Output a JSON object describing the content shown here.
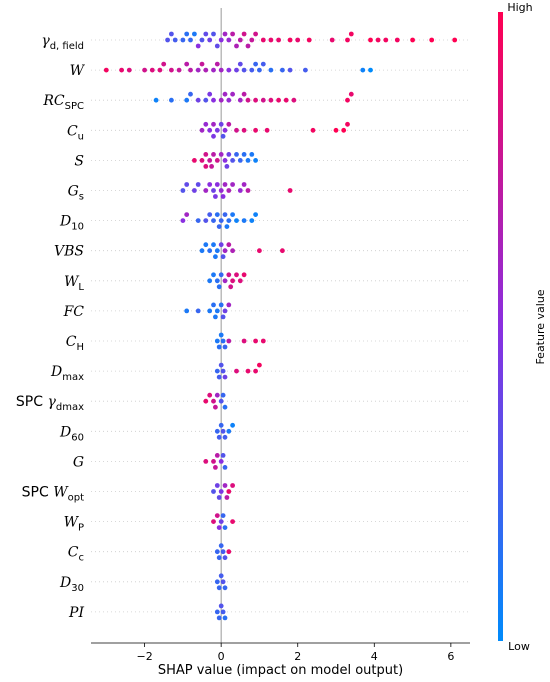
{
  "chart_data": {
    "type": "scatter",
    "subtype": "shap-beeswarm-summary",
    "xlabel": "SHAP value (impact on model output)",
    "xlim": [
      -3.4,
      6.5
    ],
    "xticks": [
      -2,
      0,
      2,
      4,
      6
    ],
    "xtick_labels": [
      "−2",
      "0",
      "2",
      "4",
      "6"
    ],
    "grid": "dotted horizontal row guides",
    "zero_line": 0,
    "colorbar": {
      "title": "Feature value",
      "high_label": "High",
      "low_label": "Low",
      "high_color": "#ff0052",
      "low_color": "#008bfb",
      "placement": "right"
    },
    "features": [
      {
        "id": "gamma_d_field",
        "base": "γ",
        "sub": "d, field",
        "pre": "",
        "italic_base": true
      },
      {
        "id": "W",
        "base": "W",
        "sub": "",
        "pre": "",
        "italic_base": true
      },
      {
        "id": "RC_SPC",
        "base": "RC",
        "sub": "SPC",
        "pre": "",
        "italic_base": true
      },
      {
        "id": "C_u",
        "base": "C",
        "sub": "u",
        "pre": "",
        "italic_base": true
      },
      {
        "id": "S",
        "base": "S",
        "sub": "",
        "pre": "",
        "italic_base": true
      },
      {
        "id": "G_s",
        "base": "G",
        "sub": "s",
        "pre": "",
        "italic_base": true
      },
      {
        "id": "D_10",
        "base": "D",
        "sub": "10",
        "pre": "",
        "italic_base": true
      },
      {
        "id": "VBS",
        "base": "VBS",
        "sub": "",
        "pre": "",
        "italic_base": true
      },
      {
        "id": "W_L",
        "base": "W",
        "sub": "L",
        "pre": "",
        "italic_base": true
      },
      {
        "id": "FC",
        "base": "FC",
        "sub": "",
        "pre": "",
        "italic_base": true
      },
      {
        "id": "C_H",
        "base": "C",
        "sub": "H",
        "pre": "",
        "italic_base": true
      },
      {
        "id": "D_max",
        "base": "D",
        "sub": "max",
        "pre": "",
        "italic_base": true
      },
      {
        "id": "SPC_gamma_dmax",
        "base": "γ",
        "sub": "dmax",
        "pre": "SPC ",
        "italic_base": true
      },
      {
        "id": "D_60",
        "base": "D",
        "sub": "60",
        "pre": "",
        "italic_base": true
      },
      {
        "id": "G",
        "base": "G",
        "sub": "",
        "pre": "",
        "italic_base": true
      },
      {
        "id": "SPC_W_opt",
        "base": "W",
        "sub": "opt",
        "pre": "SPC ",
        "italic_base": true
      },
      {
        "id": "W_P",
        "base": "W",
        "sub": "P",
        "pre": "",
        "italic_base": true
      },
      {
        "id": "C_c",
        "base": "C",
        "sub": "c",
        "pre": "",
        "italic_base": true
      },
      {
        "id": "D_30",
        "base": "D",
        "sub": "30",
        "pre": "",
        "italic_base": true
      },
      {
        "id": "PI",
        "base": "PI",
        "sub": "",
        "pre": "",
        "italic_base": true
      }
    ],
    "points": [
      [
        [
          -1.4,
          0.3
        ],
        [
          -1.2,
          0.25
        ],
        [
          -1.0,
          0.2
        ],
        [
          -0.9,
          0.15
        ],
        [
          -0.8,
          0.2
        ],
        [
          -0.7,
          0.1
        ],
        [
          -0.5,
          0.3
        ],
        [
          -0.3,
          0.4
        ],
        [
          -0.2,
          0.3
        ],
        [
          0.0,
          0.5
        ],
        [
          0.1,
          0.6
        ],
        [
          0.2,
          0.55
        ],
        [
          0.3,
          0.7
        ],
        [
          0.5,
          0.7
        ],
        [
          0.6,
          0.8
        ],
        [
          0.8,
          0.75
        ],
        [
          0.9,
          0.8
        ],
        [
          1.1,
          0.9
        ],
        [
          1.3,
          0.9
        ],
        [
          1.5,
          0.9
        ],
        [
          1.8,
          0.95
        ],
        [
          2.0,
          0.9
        ],
        [
          2.3,
          0.95
        ],
        [
          2.9,
          0.9
        ],
        [
          3.3,
          0.95
        ],
        [
          3.4,
          0.95
        ],
        [
          3.9,
          1.0
        ],
        [
          4.1,
          0.95
        ],
        [
          4.3,
          0.95
        ],
        [
          4.6,
          0.95
        ],
        [
          5.0,
          1.0
        ],
        [
          5.5,
          1.0
        ],
        [
          6.1,
          1.0
        ],
        [
          -0.6,
          0.5
        ],
        [
          -0.1,
          0.35
        ],
        [
          0.4,
          0.65
        ],
        [
          0.7,
          0.7
        ],
        [
          -1.3,
          0.3
        ],
        [
          -0.4,
          0.35
        ]
      ],
      [
        [
          -3.0,
          0.95
        ],
        [
          -2.6,
          0.9
        ],
        [
          -2.4,
          0.85
        ],
        [
          -2.0,
          0.8
        ],
        [
          -1.6,
          0.85
        ],
        [
          -1.3,
          0.8
        ],
        [
          -1.1,
          0.75
        ],
        [
          -0.8,
          0.7
        ],
        [
          -0.6,
          0.6
        ],
        [
          -0.4,
          0.65
        ],
        [
          -0.2,
          0.6
        ],
        [
          -0.1,
          0.7
        ],
        [
          0.0,
          0.6
        ],
        [
          0.2,
          0.5
        ],
        [
          0.4,
          0.4
        ],
        [
          0.6,
          0.3
        ],
        [
          0.8,
          0.25
        ],
        [
          0.9,
          0.2
        ],
        [
          1.0,
          0.2
        ],
        [
          1.3,
          0.15
        ],
        [
          1.6,
          0.2
        ],
        [
          1.8,
          0.3
        ],
        [
          2.2,
          0.25
        ],
        [
          3.7,
          0.05
        ],
        [
          3.9,
          0.0
        ],
        [
          -1.8,
          0.85
        ],
        [
          -1.5,
          0.8
        ],
        [
          -0.9,
          0.7
        ],
        [
          -0.5,
          0.75
        ],
        [
          0.5,
          0.35
        ],
        [
          1.1,
          0.25
        ]
      ],
      [
        [
          -1.7,
          0.05
        ],
        [
          -1.3,
          0.15
        ],
        [
          -0.9,
          0.1
        ],
        [
          -0.6,
          0.4
        ],
        [
          -0.4,
          0.3
        ],
        [
          -0.2,
          0.5
        ],
        [
          0.0,
          0.6
        ],
        [
          0.1,
          0.6
        ],
        [
          0.2,
          0.55
        ],
        [
          0.3,
          0.6
        ],
        [
          0.5,
          0.6
        ],
        [
          0.7,
          0.8
        ],
        [
          0.9,
          0.85
        ],
        [
          1.1,
          0.8
        ],
        [
          1.3,
          0.85
        ],
        [
          1.5,
          0.9
        ],
        [
          1.7,
          0.9
        ],
        [
          1.9,
          0.85
        ],
        [
          3.3,
          0.95
        ],
        [
          3.4,
          0.9
        ],
        [
          -0.8,
          0.2
        ],
        [
          -0.3,
          0.45
        ],
        [
          0.6,
          0.7
        ]
      ],
      [
        [
          -0.5,
          0.6
        ],
        [
          -0.4,
          0.55
        ],
        [
          -0.3,
          0.5
        ],
        [
          -0.2,
          0.6
        ],
        [
          -0.1,
          0.45
        ],
        [
          0.0,
          0.4
        ],
        [
          0.1,
          0.5
        ],
        [
          0.2,
          0.7
        ],
        [
          0.4,
          0.8
        ],
        [
          0.6,
          0.85
        ],
        [
          0.9,
          0.9
        ],
        [
          1.2,
          0.9
        ],
        [
          2.4,
          0.95
        ],
        [
          3.0,
          1.0
        ],
        [
          3.2,
          1.0
        ],
        [
          3.3,
          0.95
        ],
        [
          -0.2,
          0.45
        ],
        [
          0.05,
          0.3
        ]
      ],
      [
        [
          -0.7,
          0.9
        ],
        [
          -0.5,
          0.85
        ],
        [
          -0.4,
          0.8
        ],
        [
          -0.3,
          0.75
        ],
        [
          -0.2,
          0.7
        ],
        [
          -0.1,
          0.8
        ],
        [
          0.0,
          0.6
        ],
        [
          0.1,
          0.5
        ],
        [
          0.2,
          0.4
        ],
        [
          0.3,
          0.3
        ],
        [
          0.4,
          0.2
        ],
        [
          0.5,
          0.2
        ],
        [
          0.6,
          0.15
        ],
        [
          0.7,
          0.1
        ],
        [
          0.8,
          0.1
        ],
        [
          0.9,
          0.05
        ],
        [
          -0.4,
          0.85
        ],
        [
          -0.25,
          0.75
        ],
        [
          0.15,
          0.4
        ]
      ],
      [
        [
          -1.0,
          0.3
        ],
        [
          -0.9,
          0.35
        ],
        [
          -0.7,
          0.4
        ],
        [
          -0.6,
          0.35
        ],
        [
          -0.4,
          0.6
        ],
        [
          -0.3,
          0.5
        ],
        [
          -0.2,
          0.4
        ],
        [
          -0.1,
          0.5
        ],
        [
          0.0,
          0.55
        ],
        [
          0.1,
          0.6
        ],
        [
          0.2,
          0.65
        ],
        [
          0.3,
          0.6
        ],
        [
          0.5,
          0.55
        ],
        [
          0.6,
          0.6
        ],
        [
          0.7,
          0.7
        ],
        [
          1.8,
          0.9
        ],
        [
          -0.15,
          0.45
        ],
        [
          0.05,
          0.5
        ]
      ],
      [
        [
          -1.0,
          0.5
        ],
        [
          -0.9,
          0.6
        ],
        [
          -0.6,
          0.2
        ],
        [
          -0.4,
          0.3
        ],
        [
          -0.3,
          0.25
        ],
        [
          -0.2,
          0.2
        ],
        [
          -0.1,
          0.15
        ],
        [
          0.0,
          0.2
        ],
        [
          0.1,
          0.2
        ],
        [
          0.2,
          0.15
        ],
        [
          0.3,
          0.1
        ],
        [
          0.4,
          0.05
        ],
        [
          0.6,
          0.1
        ],
        [
          0.8,
          0.05
        ],
        [
          0.9,
          0.05
        ],
        [
          -0.05,
          0.2
        ],
        [
          0.15,
          0.1
        ]
      ],
      [
        [
          -0.5,
          0.1
        ],
        [
          -0.4,
          0.1
        ],
        [
          -0.3,
          0.15
        ],
        [
          -0.2,
          0.1
        ],
        [
          -0.1,
          0.1
        ],
        [
          0.0,
          0.4
        ],
        [
          0.1,
          0.6
        ],
        [
          0.2,
          0.7
        ],
        [
          0.3,
          0.65
        ],
        [
          1.0,
          0.9
        ],
        [
          1.6,
          0.9
        ],
        [
          -0.15,
          0.1
        ],
        [
          0.05,
          0.3
        ]
      ],
      [
        [
          -0.3,
          0.1
        ],
        [
          -0.2,
          0.1
        ],
        [
          -0.1,
          0.15
        ],
        [
          0.0,
          0.2
        ],
        [
          0.1,
          0.6
        ],
        [
          0.2,
          0.8
        ],
        [
          0.3,
          0.85
        ],
        [
          0.4,
          0.85
        ],
        [
          0.5,
          0.85
        ],
        [
          0.6,
          0.9
        ],
        [
          -0.05,
          0.15
        ],
        [
          0.25,
          0.8
        ]
      ],
      [
        [
          -0.9,
          0.1
        ],
        [
          -0.6,
          0.2
        ],
        [
          -0.3,
          0.1
        ],
        [
          -0.2,
          0.15
        ],
        [
          -0.1,
          0.1
        ],
        [
          0.0,
          0.15
        ],
        [
          0.1,
          0.4
        ],
        [
          0.2,
          0.6
        ],
        [
          -0.15,
          0.1
        ],
        [
          0.05,
          0.3
        ]
      ],
      [
        [
          -0.1,
          0.1
        ],
        [
          0.0,
          0.1
        ],
        [
          0.05,
          0.15
        ],
        [
          0.1,
          0.2
        ],
        [
          0.2,
          0.7
        ],
        [
          0.6,
          0.85
        ],
        [
          0.9,
          0.9
        ],
        [
          1.1,
          0.9
        ],
        [
          -0.05,
          0.15
        ]
      ],
      [
        [
          -0.1,
          0.2
        ],
        [
          0.0,
          0.3
        ],
        [
          0.05,
          0.3
        ],
        [
          0.1,
          0.4
        ],
        [
          0.4,
          0.85
        ],
        [
          0.7,
          0.9
        ],
        [
          0.9,
          0.9
        ],
        [
          1.0,
          0.95
        ],
        [
          -0.05,
          0.25
        ]
      ],
      [
        [
          -0.4,
          0.9
        ],
        [
          -0.3,
          0.85
        ],
        [
          -0.2,
          0.8
        ],
        [
          -0.1,
          0.6
        ],
        [
          0.0,
          0.3
        ],
        [
          0.05,
          0.2
        ],
        [
          0.1,
          0.15
        ],
        [
          -0.15,
          0.75
        ]
      ],
      [
        [
          -0.1,
          0.2
        ],
        [
          0.0,
          0.2
        ],
        [
          0.05,
          0.3
        ],
        [
          0.1,
          0.25
        ],
        [
          0.2,
          0.1
        ],
        [
          0.3,
          0.05
        ],
        [
          -0.05,
          0.25
        ]
      ],
      [
        [
          -0.4,
          0.85
        ],
        [
          -0.2,
          0.8
        ],
        [
          -0.1,
          0.7
        ],
        [
          0.0,
          0.5
        ],
        [
          0.05,
          0.3
        ],
        [
          0.1,
          0.2
        ],
        [
          -0.15,
          0.75
        ]
      ],
      [
        [
          -0.2,
          0.3
        ],
        [
          -0.1,
          0.4
        ],
        [
          0.0,
          0.45
        ],
        [
          0.1,
          0.6
        ],
        [
          0.2,
          0.9
        ],
        [
          0.3,
          0.85
        ],
        [
          -0.05,
          0.35
        ],
        [
          0.15,
          0.7
        ]
      ],
      [
        [
          -0.2,
          0.85
        ],
        [
          -0.1,
          0.8
        ],
        [
          0.0,
          0.4
        ],
        [
          0.05,
          0.2
        ],
        [
          0.1,
          0.15
        ],
        [
          0.3,
          0.9
        ],
        [
          -0.05,
          0.5
        ]
      ],
      [
        [
          -0.1,
          0.2
        ],
        [
          0.0,
          0.2
        ],
        [
          0.05,
          0.25
        ],
        [
          0.1,
          0.3
        ],
        [
          0.2,
          0.9
        ],
        [
          -0.05,
          0.2
        ]
      ],
      [
        [
          -0.1,
          0.2
        ],
        [
          0.0,
          0.25
        ],
        [
          0.05,
          0.3
        ],
        [
          0.1,
          0.2
        ],
        [
          -0.05,
          0.2
        ]
      ],
      [
        [
          -0.1,
          0.2
        ],
        [
          0.0,
          0.3
        ],
        [
          0.05,
          0.25
        ],
        [
          0.1,
          0.15
        ],
        [
          -0.05,
          0.2
        ]
      ]
    ]
  }
}
